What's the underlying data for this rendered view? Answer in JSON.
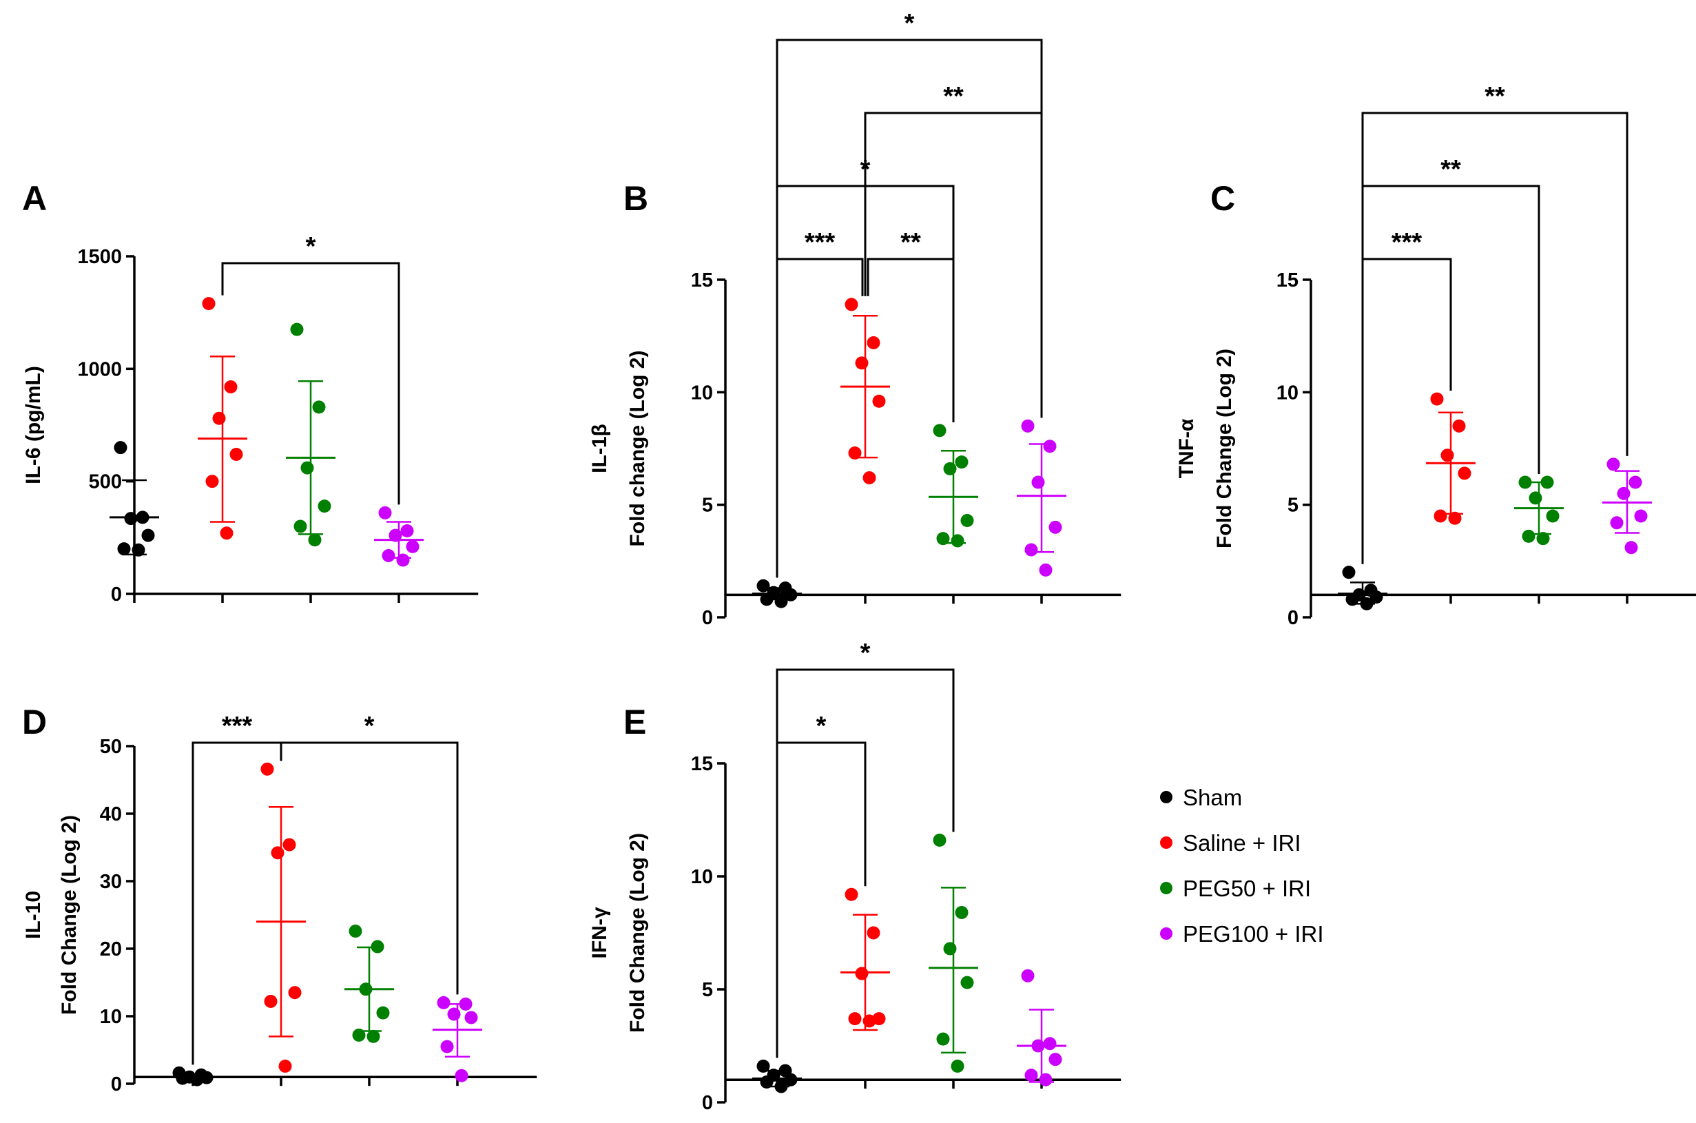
{
  "groups": [
    "Sham",
    "Saline + IRI",
    "PEG50 + IRI",
    "PEG100 + IRI"
  ],
  "colors": {
    "Sham": "#000000",
    "Saline + IRI": "#ff0000",
    "PEG50 + IRI": "#008000",
    "PEG100 + IRI": "#cc00ff"
  },
  "chart_data": [
    {
      "type": "scatter",
      "panel": "A",
      "ylabel": [
        "IL-6 (pg/mL)"
      ],
      "ylim": [
        0,
        1500
      ],
      "yticks": [
        0,
        500,
        1000,
        1500
      ],
      "baseline": 0,
      "series": [
        {
          "name": "Sham",
          "values": [
            650,
            340,
            335,
            260,
            200,
            195
          ],
          "mean": 340,
          "sd_low": 175,
          "sd_high": 505
        },
        {
          "name": "Saline + IRI",
          "values": [
            1290,
            920,
            780,
            620,
            500,
            270
          ],
          "mean": 690,
          "sd_low": 320,
          "sd_high": 1055
        },
        {
          "name": "PEG50 + IRI",
          "values": [
            1175,
            830,
            560,
            390,
            300,
            240
          ],
          "mean": 605,
          "sd_low": 265,
          "sd_high": 945
        },
        {
          "name": "PEG100 + IRI",
          "values": [
            360,
            280,
            260,
            210,
            170,
            150
          ],
          "mean": 240,
          "sd_low": 160,
          "sd_high": 320
        }
      ],
      "significance": [
        {
          "from": 1,
          "to": 3,
          "label": "*",
          "level": 1
        }
      ]
    },
    {
      "type": "scatter",
      "panel": "B",
      "ylabel": [
        "IL-1β",
        "Fold change (Log 2)"
      ],
      "ylim": [
        0,
        15
      ],
      "yticks": [
        0,
        5,
        10,
        15
      ],
      "baseline": 1,
      "series": [
        {
          "name": "Sham",
          "values": [
            1.4,
            1.3,
            1.1,
            1.0,
            0.8,
            0.7
          ],
          "mean": 1.05,
          "sd_low": 0.8,
          "sd_high": 1.3
        },
        {
          "name": "Saline + IRI",
          "values": [
            13.9,
            12.2,
            11.3,
            9.6,
            7.3,
            6.2
          ],
          "mean": 10.25,
          "sd_low": 7.1,
          "sd_high": 13.4
        },
        {
          "name": "PEG50 + IRI",
          "values": [
            8.3,
            6.9,
            6.6,
            4.3,
            3.5,
            3.4
          ],
          "mean": 5.35,
          "sd_low": 3.3,
          "sd_high": 7.4
        },
        {
          "name": "PEG100 + IRI",
          "values": [
            8.5,
            7.6,
            6.0,
            4.0,
            3.0,
            2.1
          ],
          "mean": 5.4,
          "sd_low": 2.9,
          "sd_high": 7.7
        }
      ],
      "significance": [
        {
          "from": 0,
          "to": 1,
          "label": "***",
          "level": 1
        },
        {
          "from": 1,
          "to": 2,
          "label": "**",
          "level": 1
        },
        {
          "from": 0,
          "to": 2,
          "label": "*",
          "level": 2
        },
        {
          "from": 1,
          "to": 3,
          "label": "**",
          "level": 3
        },
        {
          "from": 0,
          "to": 3,
          "label": "*",
          "level": 4
        }
      ]
    },
    {
      "type": "scatter",
      "panel": "C",
      "ylabel": [
        "TNF-α",
        "Fold Change (Log 2)"
      ],
      "ylim": [
        0,
        15
      ],
      "yticks": [
        0,
        5,
        10,
        15
      ],
      "baseline": 1,
      "series": [
        {
          "name": "Sham",
          "values": [
            2.0,
            1.2,
            1.0,
            0.9,
            0.8,
            0.6
          ],
          "mean": 1.05,
          "sd_low": 0.6,
          "sd_high": 1.55
        },
        {
          "name": "Saline + IRI",
          "values": [
            9.7,
            8.5,
            7.2,
            6.4,
            4.5,
            4.4
          ],
          "mean": 6.85,
          "sd_low": 4.6,
          "sd_high": 9.1
        },
        {
          "name": "PEG50 + IRI",
          "values": [
            6.0,
            6.0,
            5.3,
            4.5,
            3.6,
            3.5
          ],
          "mean": 4.85,
          "sd_low": 3.7,
          "sd_high": 6.0
        },
        {
          "name": "PEG100 + IRI",
          "values": [
            6.8,
            6.0,
            5.5,
            4.5,
            4.2,
            3.1
          ],
          "mean": 5.1,
          "sd_low": 3.75,
          "sd_high": 6.5
        }
      ],
      "significance": [
        {
          "from": 0,
          "to": 1,
          "label": "***",
          "level": 1
        },
        {
          "from": 0,
          "to": 2,
          "label": "**",
          "level": 2
        },
        {
          "from": 0,
          "to": 3,
          "label": "**",
          "level": 3
        }
      ]
    },
    {
      "type": "scatter",
      "panel": "D",
      "ylabel": [
        "IL-10",
        "Fold Change (Log 2)"
      ],
      "ylim": [
        0,
        50
      ],
      "yticks": [
        0,
        10,
        20,
        30,
        40,
        50
      ],
      "baseline": 1,
      "series": [
        {
          "name": "Sham",
          "values": [
            1.6,
            1.3,
            1.0,
            0.9,
            0.8,
            0.6
          ],
          "mean": 1.0,
          "sd_low": 0.7,
          "sd_high": 1.3
        },
        {
          "name": "Saline + IRI",
          "values": [
            46.6,
            35.4,
            34.2,
            13.5,
            12.2,
            2.6
          ],
          "mean": 24.0,
          "sd_low": 7.0,
          "sd_high": 41.0
        },
        {
          "name": "PEG50 + IRI",
          "values": [
            22.6,
            20.3,
            14.0,
            10.5,
            7.2,
            7.0
          ],
          "mean": 14.0,
          "sd_low": 7.8,
          "sd_high": 20.2
        },
        {
          "name": "PEG100 + IRI",
          "values": [
            12.0,
            11.8,
            10.3,
            9.8,
            5.5,
            1.2
          ],
          "mean": 8.0,
          "sd_low": 4.0,
          "sd_high": 11.8
        }
      ],
      "significance": [
        {
          "from": 0,
          "to": 1,
          "label": "***",
          "level": 1
        },
        {
          "from": 1,
          "to": 3,
          "label": "*",
          "level": 1
        }
      ]
    },
    {
      "type": "scatter",
      "panel": "E",
      "ylabel": [
        "IFN-γ",
        "Fold Change (Log 2)"
      ],
      "ylim": [
        0,
        15
      ],
      "yticks": [
        0,
        5,
        10,
        15
      ],
      "baseline": 1,
      "series": [
        {
          "name": "Sham",
          "values": [
            1.6,
            1.4,
            1.2,
            1.0,
            0.9,
            0.7
          ],
          "mean": 1.05,
          "sd_low": 0.7,
          "sd_high": 1.4
        },
        {
          "name": "Saline + IRI",
          "values": [
            9.2,
            7.5,
            5.7,
            3.7,
            3.7,
            3.6
          ],
          "mean": 5.75,
          "sd_low": 3.2,
          "sd_high": 8.3
        },
        {
          "name": "PEG50 + IRI",
          "values": [
            11.6,
            8.4,
            6.8,
            5.3,
            2.8,
            1.6
          ],
          "mean": 5.95,
          "sd_low": 2.2,
          "sd_high": 9.5
        },
        {
          "name": "PEG100 + IRI",
          "values": [
            5.6,
            2.6,
            2.5,
            1.9,
            1.2,
            1.0
          ],
          "mean": 2.5,
          "sd_low": 0.9,
          "sd_high": 4.1
        }
      ],
      "significance": [
        {
          "from": 0,
          "to": 1,
          "label": "*",
          "level": 1
        },
        {
          "from": 0,
          "to": 2,
          "label": "*",
          "level": 2
        }
      ]
    }
  ]
}
